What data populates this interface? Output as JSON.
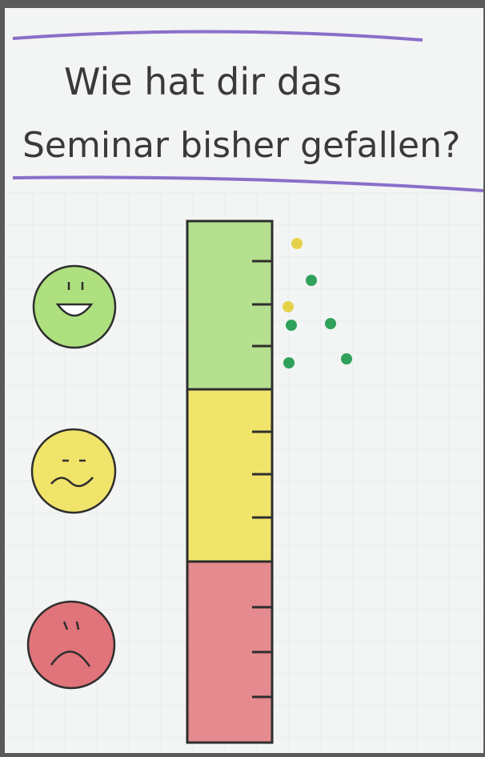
{
  "title": {
    "lines": [
      "Wie hat dir das",
      "Seminar bisher gefallen?"
    ]
  }
}
